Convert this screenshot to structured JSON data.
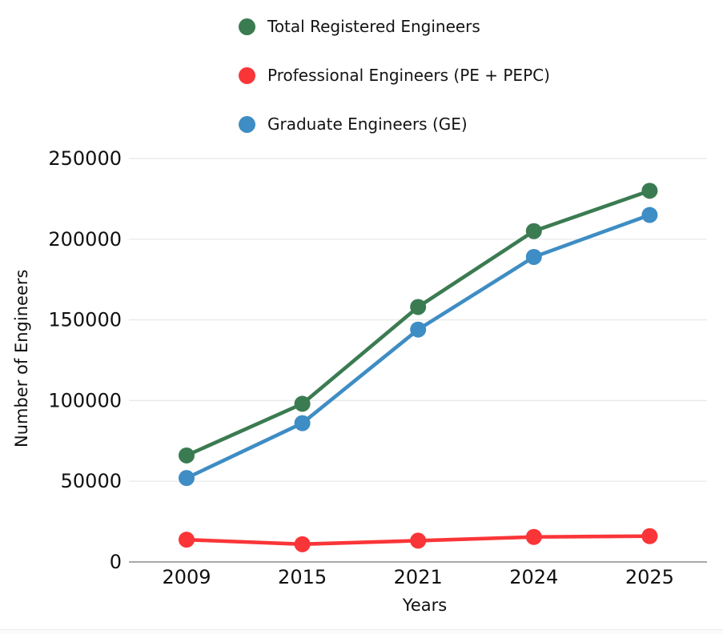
{
  "chart_data": {
    "type": "line",
    "categories": [
      "2009",
      "2015",
      "2021",
      "2024",
      "2025"
    ],
    "series": [
      {
        "name": "Total Registered Engineers",
        "color": "#3b7b51",
        "values": [
          66000,
          98000,
          158000,
          205000,
          230000
        ]
      },
      {
        "name": "Professional Engineers (PE + PEPC)",
        "color": "#fa3538",
        "values": [
          13800,
          11000,
          13200,
          15500,
          16000
        ]
      },
      {
        "name": "Graduate Engineers (GE)",
        "color": "#3e8dc4",
        "values": [
          52000,
          86000,
          144000,
          189000,
          215000
        ]
      }
    ],
    "title": "",
    "xlabel": "Years",
    "ylabel": "Number of Engineers",
    "ylim": [
      0,
      250000
    ],
    "y_ticks": [
      0,
      50000,
      100000,
      150000,
      200000,
      250000
    ],
    "grid": true,
    "legend_position": "top-center",
    "marker": "circle"
  },
  "style": {
    "background": "#ffffff",
    "gridline_color": "#e7e7e7",
    "axis_line_color": "#8c8c8c",
    "tick_label_color": "#101010"
  }
}
